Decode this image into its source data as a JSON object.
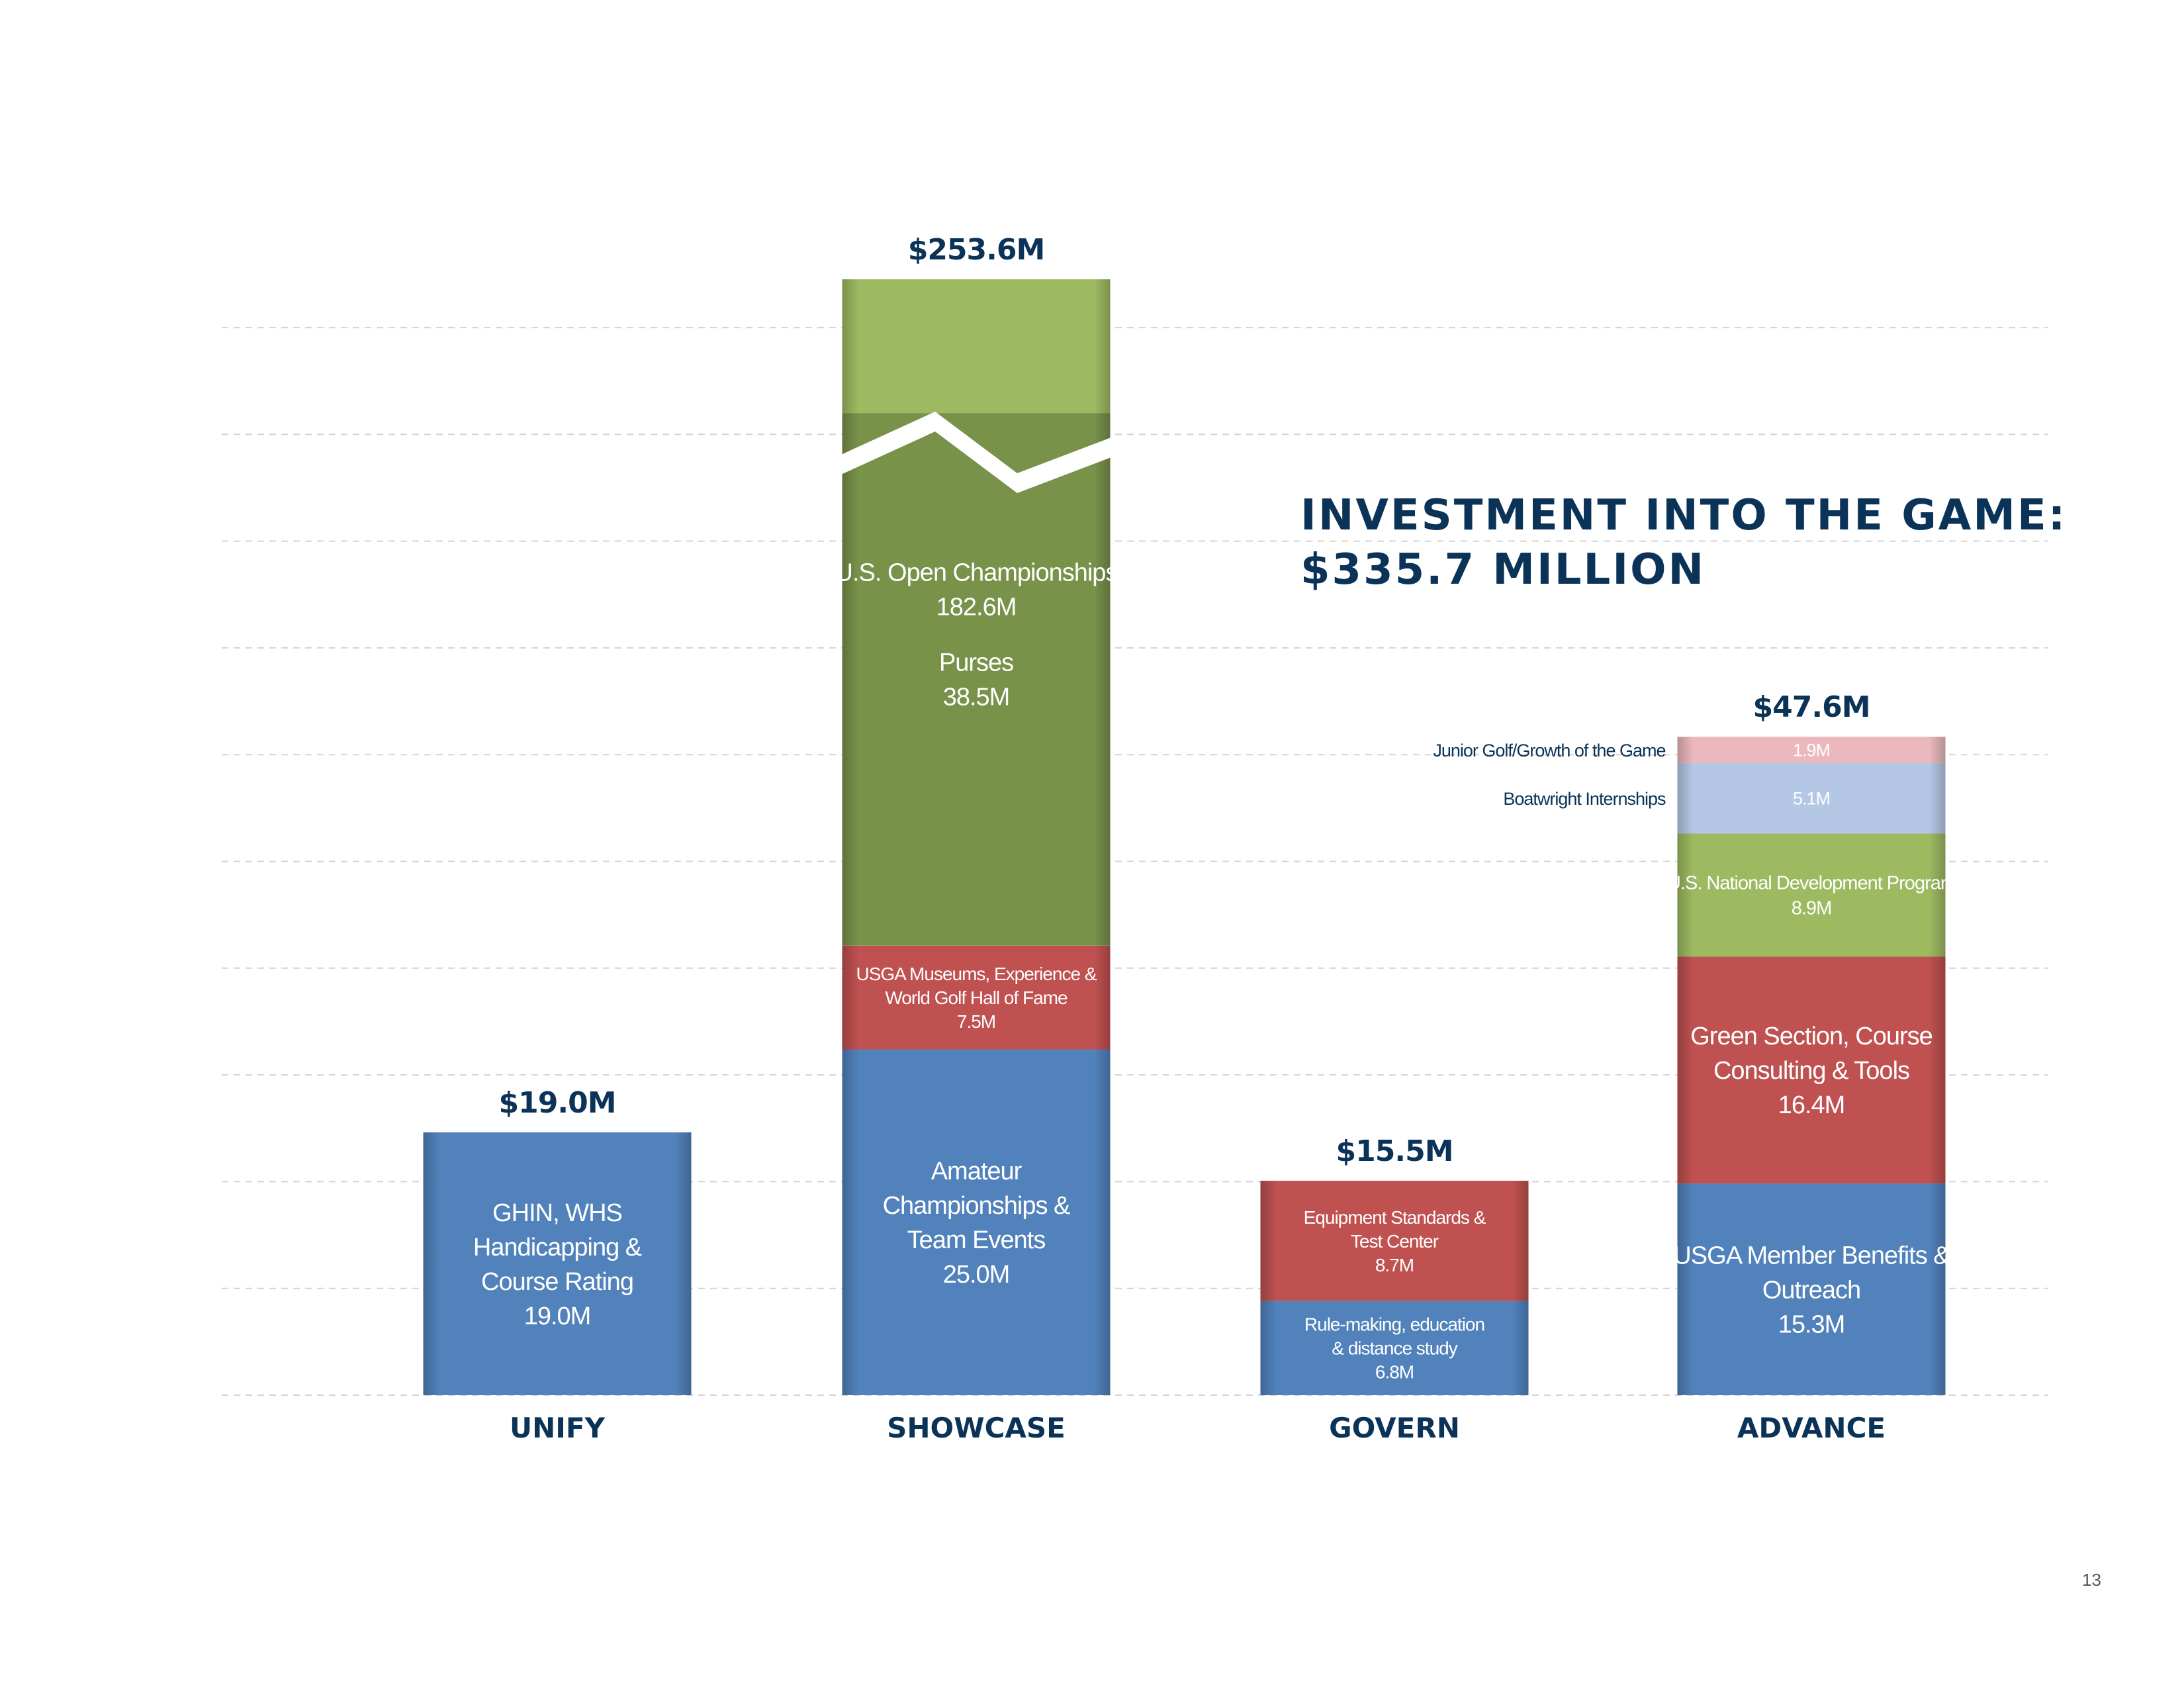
{
  "title": {
    "line1": "INVESTMENT INTO THE GAME:",
    "line2": "$335.7 MILLION"
  },
  "page_number": "13",
  "chart_data": {
    "type": "bar",
    "stacked": true,
    "axis_break": {
      "category": "SHOWCASE",
      "segment": "U.S. Open Championships"
    },
    "grid": true,
    "categories": [
      "UNIFY",
      "SHOWCASE",
      "GOVERN",
      "ADVANCE"
    ],
    "totals": [
      {
        "category": "UNIFY",
        "label": "$19.0M",
        "value": 19.0
      },
      {
        "category": "SHOWCASE",
        "label": "$253.6M",
        "value": 253.6
      },
      {
        "category": "GOVERN",
        "label": "$15.5M",
        "value": 15.5
      },
      {
        "category": "ADVANCE",
        "label": "$47.6M",
        "value": 47.6
      }
    ],
    "stacks": [
      {
        "category": "UNIFY",
        "segments": [
          {
            "lines": [
              "GHIN, WHS",
              "Handicapping &",
              "Course Rating",
              "19.0M"
            ],
            "value": 19.0,
            "color": "#5182bc"
          }
        ]
      },
      {
        "category": "SHOWCASE",
        "segments": [
          {
            "lines": [
              "Amateur",
              "Championships &",
              "Team Events",
              "25.0M"
            ],
            "value": 25.0,
            "color": "#5182bc"
          },
          {
            "lines": [
              "USGA Museums, Experience &",
              "World Golf Hall of Fame",
              "7.5M"
            ],
            "value": 7.5,
            "color": "#bf5150"
          },
          {
            "lines": [
              "Purses",
              "38.5M"
            ],
            "value": 38.5,
            "color": "#78924a"
          },
          {
            "lines": [
              "U.S. Open Championships",
              "182.6M"
            ],
            "value": 182.6,
            "color": "#9dba61"
          }
        ]
      },
      {
        "category": "GOVERN",
        "segments": [
          {
            "lines": [
              "Rule-making, education",
              "& distance study",
              "6.8M"
            ],
            "value": 6.8,
            "color": "#5182bc"
          },
          {
            "lines": [
              "Equipment Standards &",
              "Test Center",
              "8.7M"
            ],
            "value": 8.7,
            "color": "#bf5150"
          }
        ]
      },
      {
        "category": "ADVANCE",
        "segments": [
          {
            "lines": [
              "USGA Member Benefits &",
              "Outreach",
              "15.3M"
            ],
            "value": 15.3,
            "color": "#5182bc"
          },
          {
            "lines": [
              "Green Section, Course",
              "Consulting & Tools",
              "16.4M"
            ],
            "value": 16.4,
            "color": "#bf5150"
          },
          {
            "lines": [
              "U.S. National Development Program",
              "8.9M"
            ],
            "value": 8.9,
            "color": "#9dba61"
          },
          {
            "lines": [
              "5.1M"
            ],
            "side_label": "Boatwright Internships",
            "value": 5.1,
            "color": "#b4c8e6"
          },
          {
            "lines": [
              "1.9M"
            ],
            "side_label": "Junior Golf/Growth of the Game",
            "value": 1.9,
            "color": "#eab8bd"
          }
        ]
      }
    ]
  }
}
